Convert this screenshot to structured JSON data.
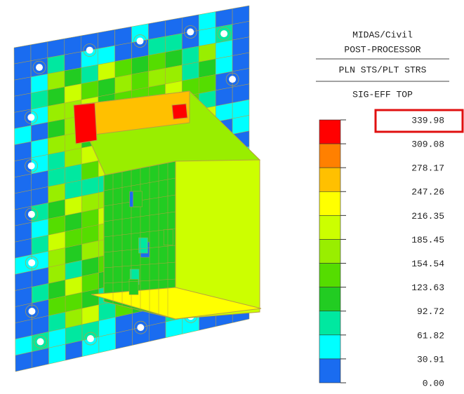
{
  "header": {
    "lines": [
      "MIDAS/Civil",
      "POST-PROCESSOR",
      "PLN STS/PLT STRS",
      "SIG-EFF TOP"
    ]
  },
  "legend": {
    "labels": [
      "339.98",
      "309.08",
      "278.17",
      "247.26",
      "216.35",
      "185.45",
      "154.54",
      "123.63",
      "92.72",
      "61.82",
      "30.91",
      "0.00"
    ],
    "colors": [
      "#ff0000",
      "#ff8000",
      "#ffc000",
      "#ffff00",
      "#ccff00",
      "#99ee00",
      "#55dd00",
      "#22cc22",
      "#00e8a0",
      "#00ffff",
      "#1a6cf0"
    ]
  }
}
